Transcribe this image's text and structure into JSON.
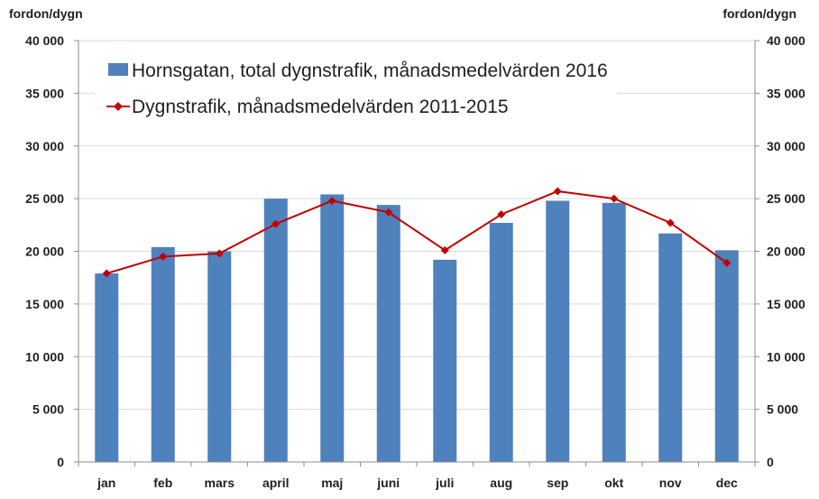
{
  "chart_data": {
    "type": "bar",
    "categories": [
      "jan",
      "feb",
      "mars",
      "april",
      "maj",
      "juni",
      "juli",
      "aug",
      "sep",
      "okt",
      "nov",
      "dec"
    ],
    "series": [
      {
        "name": "Hornsgatan, total dygnstrafik, månadsmedelvärden 2016",
        "type": "bar",
        "color": "#4f81bd",
        "values": [
          17900,
          20400,
          20000,
          25000,
          25400,
          24400,
          19200,
          22700,
          24800,
          24600,
          21700,
          20100
        ]
      },
      {
        "name": "Dygnstrafik, månadsmedelvärden 2011-2015",
        "type": "line",
        "color": "#c00000",
        "values": [
          17900,
          19500,
          19800,
          22600,
          24800,
          23700,
          20100,
          23500,
          25700,
          25000,
          22700,
          18900
        ]
      }
    ],
    "ylabel_left": "fordon/dygn",
    "ylabel_right": "fordon/dygn",
    "ylim": [
      0,
      40000
    ],
    "yticks": [
      "0",
      "5 000",
      "10 000",
      "15 000",
      "20 000",
      "25 000",
      "30 000",
      "35 000",
      "40 000"
    ],
    "grid": true,
    "legend_position": "top-left"
  }
}
